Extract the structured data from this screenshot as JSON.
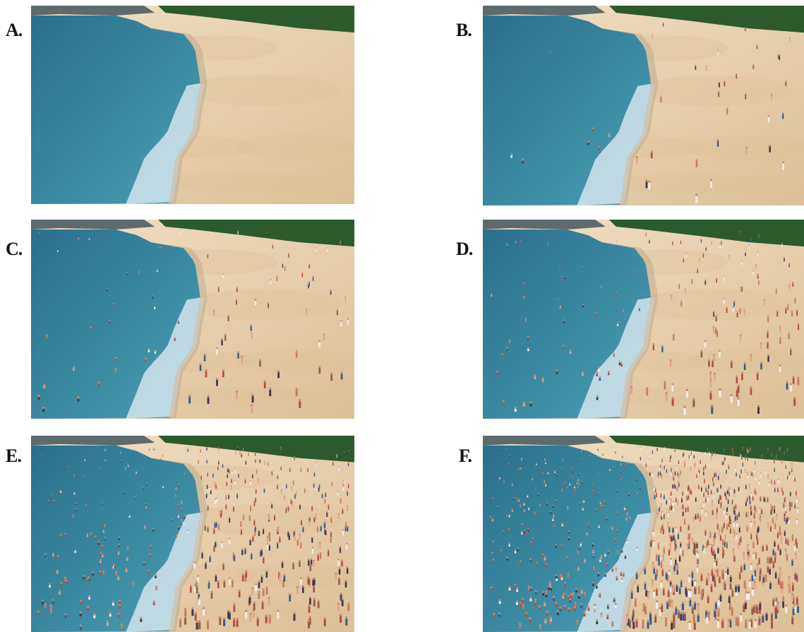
{
  "colors": {
    "ocean_light": "#4a9fb5",
    "ocean_dark": "#2a6f8c",
    "sand_light": "#f1e0c4",
    "sand_dark": "#dcbf95",
    "foam": "#dceaf0",
    "trees": "#2c5a2c",
    "rocks": "#5d6a6e",
    "people": [
      "#c97a5a",
      "#9a5c44",
      "#e2a58a",
      "#3b3b55",
      "#b84a4a",
      "#2f5f8f",
      "#f0f0f0"
    ]
  },
  "panels": [
    {
      "label": "A.",
      "people_count": 0
    },
    {
      "label": "B.",
      "people_count": 40
    },
    {
      "label": "C.",
      "people_count": 90
    },
    {
      "label": "D.",
      "people_count": 170
    },
    {
      "label": "E.",
      "people_count": 420
    },
    {
      "label": "F.",
      "people_count": 900
    }
  ]
}
